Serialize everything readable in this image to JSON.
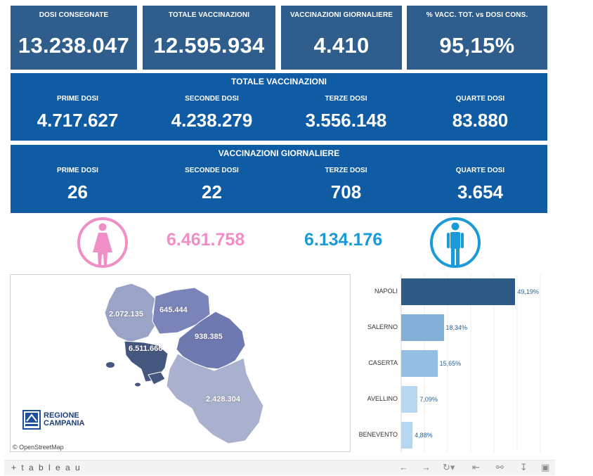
{
  "kpis": [
    {
      "label": "DOSI  CONSEGNATE",
      "value": "13.238.047"
    },
    {
      "label": "TOTALE VACCINAZIONI",
      "value": "12.595.934"
    },
    {
      "label": "VACCINAZIONI GIORNALIERE",
      "value": "4.410"
    },
    {
      "label": "% VACC. TOT. vs DOSI CONS.",
      "value": "95,15%"
    }
  ],
  "totale": {
    "title": "TOTALE VACCINAZIONI",
    "items": [
      {
        "label": "PRIME DOSI",
        "value": "4.717.627"
      },
      {
        "label": "SECONDE DOSI",
        "value": "4.238.279"
      },
      {
        "label": "TERZE DOSI",
        "value": "3.556.148"
      },
      {
        "label": "QUARTE DOSI",
        "value": "83.880"
      }
    ]
  },
  "giornaliere": {
    "title": "VACCINAZIONI GIORNALIERE",
    "items": [
      {
        "label": "PRIME DOSI",
        "value": "26"
      },
      {
        "label": "SECONDE DOSI",
        "value": "22"
      },
      {
        "label": "TERZE DOSI",
        "value": "708"
      },
      {
        "label": "QUARTE DOSI",
        "value": "3.654"
      }
    ]
  },
  "gender": {
    "female_icon": "female-figure-icon",
    "male_icon": "male-figure-icon",
    "female_value": "6.461.758",
    "male_value": "6.134.176",
    "female_color": "#f08fc6",
    "male_color": "#1a9bd7"
  },
  "map": {
    "province_values": {
      "caserta": "2.072.135",
      "benevento": "645.444",
      "avellino": "938.385",
      "napoli": "6.511.666",
      "salerno": "2.428.304"
    },
    "logo_line1": "REGIONE",
    "logo_line2": "CAMPANIA",
    "attribution": "© OpenStreetMap"
  },
  "chart_data": {
    "type": "bar",
    "orientation": "horizontal",
    "categories": [
      "NAPOLI",
      "SALERNO",
      "CASERTA",
      "AVELLINO",
      "BENEVENTO"
    ],
    "values": [
      49.19,
      18.34,
      15.65,
      7.09,
      4.88
    ],
    "value_labels": [
      "49,19%",
      "18,34%",
      "15,65%",
      "7,09%",
      "4,88%"
    ],
    "colors": [
      "#2e5a86",
      "#83b0d7",
      "#95bfe2",
      "#b6d7ef",
      "#b6d7ef"
    ],
    "xlim": [
      0,
      60
    ],
    "grid": true
  },
  "footer": {
    "logo": "+ t a b l e a u",
    "icons": [
      "undo-icon",
      "redo-icon",
      "revert-icon",
      "reset-icon",
      "share-icon",
      "download-icon",
      "fullscreen-icon"
    ]
  }
}
